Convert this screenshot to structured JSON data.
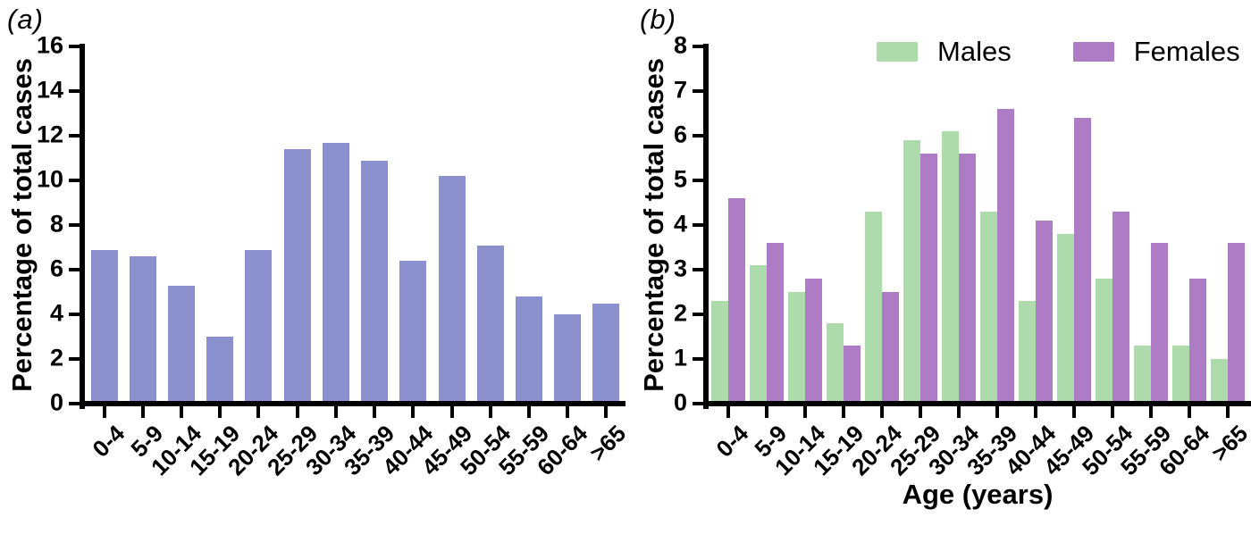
{
  "panels": {
    "a": {
      "label": "(a)"
    },
    "b": {
      "label": "(b)"
    }
  },
  "chart_data": [
    {
      "type": "bar",
      "panel": "a",
      "categories": [
        "0-4",
        "5-9",
        "10-14",
        "15-19",
        "20-24",
        "25-29",
        "30-34",
        "35-39",
        "40-44",
        "45-49",
        "50-54",
        "55-59",
        "60-64",
        ">65"
      ],
      "values": [
        6.9,
        6.6,
        5.3,
        3.0,
        6.9,
        11.4,
        11.7,
        10.9,
        6.4,
        10.2,
        7.1,
        4.8,
        4.0,
        4.5
      ],
      "title": "",
      "xlabel": "",
      "ylabel": "Percentage of total cases",
      "ylim": [
        0,
        16
      ],
      "ytick_step": 2,
      "bar_color": "#8b91ce",
      "grid": false,
      "legend_position": "none"
    },
    {
      "type": "bar",
      "panel": "b",
      "categories": [
        "0-4",
        "5-9",
        "10-14",
        "15-19",
        "20-24",
        "25-29",
        "30-34",
        "35-39",
        "40-44",
        "45-49",
        "50-54",
        "55-59",
        "60-64",
        ">65"
      ],
      "series": [
        {
          "name": "Males",
          "color": "#aedbac",
          "values": [
            2.3,
            3.1,
            2.5,
            1.8,
            4.3,
            5.9,
            6.1,
            4.3,
            2.3,
            3.8,
            2.8,
            1.3,
            1.3,
            1.0
          ]
        },
        {
          "name": "Females",
          "color": "#ae7cc5",
          "values": [
            4.6,
            3.6,
            2.8,
            1.3,
            2.5,
            5.6,
            5.6,
            6.6,
            4.1,
            6.4,
            4.3,
            3.6,
            2.8,
            3.6
          ]
        }
      ],
      "title": "",
      "xlabel": "Age (years)",
      "ylabel": "Percentage of total cases",
      "ylim": [
        0,
        8
      ],
      "ytick_step": 1,
      "grid": false,
      "legend_position": "top"
    }
  ],
  "axis_color": "#000000"
}
